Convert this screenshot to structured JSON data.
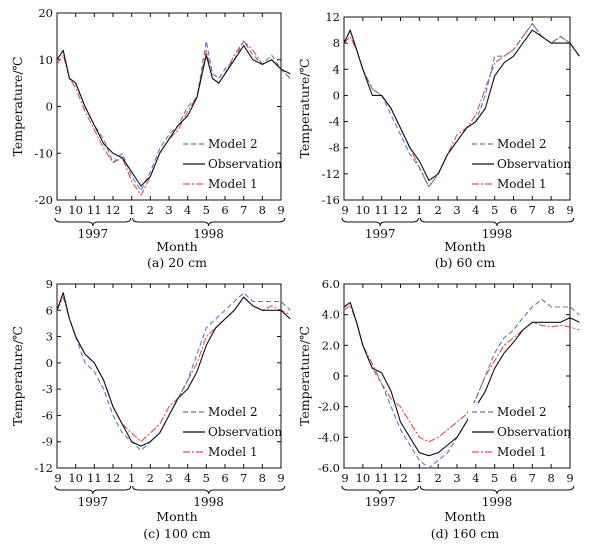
{
  "figure": {
    "series_styles": {
      "Model 2": {
        "color": "#5b76c9",
        "dash": "5,3"
      },
      "Observation": {
        "color": "#111111",
        "dash": ""
      },
      "Model 1": {
        "color": "#e0504c",
        "dash": "7,2,2,2"
      }
    }
  },
  "chart_data": [
    {
      "type": "line",
      "caption": "(a) 20 cm",
      "xlabel": "Month",
      "ylabel": "Temperature/℃",
      "ylim": [
        -20,
        20
      ],
      "yticks": [
        "20",
        "10",
        "0",
        "-10",
        "-20"
      ],
      "month_ticks": [
        "9",
        "10",
        "11",
        "12",
        "1",
        "2",
        "3",
        "4",
        "5",
        "6",
        "7",
        "8",
        "9"
      ],
      "years": [
        "1997",
        "1998"
      ],
      "legend": [
        "Model 2",
        "Observation",
        "Model 1"
      ],
      "legend_placement": "bottom-right",
      "grid": false,
      "x_unit": "months since 1997-09-01",
      "x": [
        0,
        0.33,
        0.67,
        1,
        1.5,
        2,
        2.5,
        3,
        3.5,
        4,
        4.5,
        5,
        5.5,
        6,
        6.5,
        7,
        7.5,
        8,
        8.33,
        8.67,
        9,
        9.5,
        10,
        10.5,
        11,
        11.5,
        12,
        12.5
      ],
      "series": [
        {
          "name": "Model 2",
          "values": [
            10,
            12,
            6,
            5,
            0,
            -4,
            -7,
            -12,
            -10,
            -15,
            -18,
            -14,
            -9,
            -6,
            -4,
            0,
            2,
            14,
            7,
            6,
            8,
            10,
            14,
            11,
            9,
            11,
            8,
            6
          ]
        },
        {
          "name": "Observation",
          "values": [
            10,
            12,
            6,
            5,
            0,
            -4,
            -8,
            -10,
            -11,
            -14,
            -17,
            -15,
            -10,
            -7,
            -4,
            -2,
            2,
            11,
            6,
            5,
            7,
            10,
            13,
            10,
            9,
            10,
            8,
            7
          ]
        },
        {
          "name": "Model 1",
          "values": [
            9,
            11,
            6,
            4,
            -1,
            -5,
            -9,
            -12,
            -11,
            -16,
            -19,
            -15,
            -10,
            -7,
            -5,
            -1,
            2,
            12,
            6,
            5,
            7,
            11,
            14,
            12,
            9,
            10,
            8,
            6
          ]
        }
      ]
    },
    {
      "type": "line",
      "caption": "(b) 60 cm",
      "xlabel": "Month",
      "ylabel": "Temperature/℃",
      "ylim": [
        -16,
        12
      ],
      "yticks": [
        "12",
        "8",
        "4",
        "0",
        "-4",
        "-8",
        "-12",
        "-16"
      ],
      "month_ticks": [
        "9",
        "10",
        "11",
        "12",
        "1",
        "2",
        "3",
        "4",
        "5",
        "6",
        "7",
        "8",
        "9"
      ],
      "years": [
        "1997",
        "1998"
      ],
      "legend": [
        "Model 2",
        "Observation",
        "Model 1"
      ],
      "legend_placement": "bottom-right",
      "grid": false,
      "x_unit": "months since 1997-09-01",
      "x": [
        0,
        0.33,
        0.67,
        1,
        1.5,
        2,
        2.5,
        3,
        3.5,
        4,
        4.5,
        5,
        5.5,
        6,
        6.5,
        7,
        7.5,
        8,
        8.5,
        9,
        9.5,
        10,
        10.5,
        11,
        11.5,
        12,
        12.5
      ],
      "series": [
        {
          "name": "Model 2",
          "values": [
            8,
            10,
            7,
            4,
            1,
            0,
            -3,
            -6,
            -9,
            -11,
            -14,
            -12,
            -9,
            -7,
            -5,
            -4,
            0,
            6,
            6,
            7,
            9,
            11,
            9,
            8,
            9,
            8,
            6
          ]
        },
        {
          "name": "Observation",
          "values": [
            8,
            10,
            7,
            4,
            0,
            0,
            -2,
            -5,
            -8,
            -10,
            -13,
            -12,
            -9,
            -7,
            -5,
            -4,
            -2,
            3,
            5,
            6,
            8,
            10,
            9,
            8,
            8,
            8,
            6
          ]
        },
        {
          "name": "Model 1",
          "values": [
            8,
            9,
            7,
            4,
            1,
            0,
            -2,
            -5,
            -8,
            -11,
            -14,
            -12,
            -9,
            -6,
            -5,
            -3,
            1,
            5,
            6,
            7,
            9,
            11,
            9,
            8,
            9,
            8,
            6
          ]
        }
      ]
    },
    {
      "type": "line",
      "caption": "(c) 100 cm",
      "xlabel": "Month",
      "ylabel": "Temperature/℃",
      "ylim": [
        -12,
        9
      ],
      "yticks": [
        "9",
        "6",
        "3",
        "0",
        "-3",
        "-6",
        "-9",
        "-12"
      ],
      "month_ticks": [
        "9",
        "10",
        "11",
        "12",
        "1",
        "2",
        "3",
        "4",
        "5",
        "6",
        "7",
        "8",
        "9"
      ],
      "years": [
        "1997",
        "1998"
      ],
      "legend": [
        "Model 2",
        "Observation",
        "Model 1"
      ],
      "legend_placement": "bottom-right",
      "grid": false,
      "x_unit": "months since 1997-09-01",
      "x": [
        0,
        0.33,
        0.67,
        1,
        1.5,
        2,
        2.5,
        3,
        3.5,
        4,
        4.5,
        5,
        5.5,
        6,
        6.5,
        7,
        7.5,
        8,
        8.5,
        9,
        9.5,
        10,
        10.5,
        11,
        11.5,
        12,
        12.5
      ],
      "series": [
        {
          "name": "Model 2",
          "values": [
            6,
            8,
            5,
            3,
            0,
            -1,
            -3,
            -6,
            -8,
            -9,
            -10,
            -9,
            -8,
            -6,
            -4,
            -2,
            1,
            4,
            5,
            6,
            7,
            8,
            7,
            7,
            7,
            7,
            6
          ]
        },
        {
          "name": "Observation",
          "values": [
            6,
            8,
            5,
            3,
            1,
            0,
            -2,
            -5,
            -7,
            -9,
            -9.5,
            -9,
            -8,
            -6,
            -4,
            -3,
            -1,
            2,
            4,
            5,
            6,
            7.5,
            6.5,
            6,
            6,
            6,
            5
          ]
        },
        {
          "name": "Model 1",
          "values": [
            6,
            7.5,
            5,
            3,
            1,
            0,
            -2,
            -5,
            -7,
            -8,
            -9,
            -8,
            -7,
            -5,
            -4,
            -2,
            0,
            3,
            4,
            5,
            6,
            7.5,
            6.5,
            6,
            6.5,
            6,
            5.5
          ]
        }
      ]
    },
    {
      "type": "line",
      "caption": "(d) 160 cm",
      "xlabel": "Month",
      "ylabel": "Temperature/℃",
      "ylim": [
        -6,
        6
      ],
      "yticks": [
        "6.0",
        "4.0",
        "2.0",
        "0",
        "-2.0",
        "-4.0",
        "-6.0"
      ],
      "month_ticks": [
        "9",
        "10",
        "11",
        "12",
        "1",
        "2",
        "3",
        "4",
        "5",
        "6",
        "7",
        "8",
        "9"
      ],
      "years": [
        "1997",
        "1998"
      ],
      "legend": [
        "Model 2",
        "Observation",
        "Model 1"
      ],
      "legend_placement": "bottom-right",
      "grid": false,
      "x_unit": "months since 1997-09-01",
      "x": [
        0,
        0.33,
        0.67,
        1,
        1.5,
        2,
        2.5,
        3,
        3.5,
        4,
        4.5,
        5,
        5.5,
        6,
        6.5,
        7,
        7.5,
        8,
        8.5,
        9,
        9.5,
        10,
        10.5,
        11,
        11.5,
        12,
        12.5
      ],
      "series": [
        {
          "name": "Model 2",
          "values": [
            4.5,
            4.8,
            3.5,
            2,
            0.5,
            -0.5,
            -2,
            -3.5,
            -4.5,
            -5.5,
            -6,
            -5.5,
            -5,
            -4,
            -3,
            -1.5,
            0,
            1.5,
            2.5,
            3,
            3.8,
            4.5,
            5,
            4.5,
            4.5,
            4.5,
            4
          ]
        },
        {
          "name": "Observation",
          "values": [
            4.5,
            4.8,
            3.5,
            2,
            0.5,
            0.2,
            -1,
            -3,
            -4,
            -5,
            -5.2,
            -5,
            -4.5,
            -4,
            -3,
            -2,
            -1,
            0.5,
            1.5,
            2.2,
            3,
            3.5,
            3.5,
            3.5,
            3.5,
            3.8,
            3.5
          ]
        },
        {
          "name": "Model 1",
          "values": [
            4.3,
            4.6,
            3.5,
            2,
            0.8,
            -0.5,
            -1.5,
            -2,
            -3,
            -4,
            -4.3,
            -4,
            -3.5,
            -3,
            -2.5,
            -1.5,
            0,
            1,
            2,
            2.5,
            3,
            3.5,
            3.3,
            3.2,
            3.3,
            3.2,
            3
          ]
        }
      ]
    }
  ]
}
